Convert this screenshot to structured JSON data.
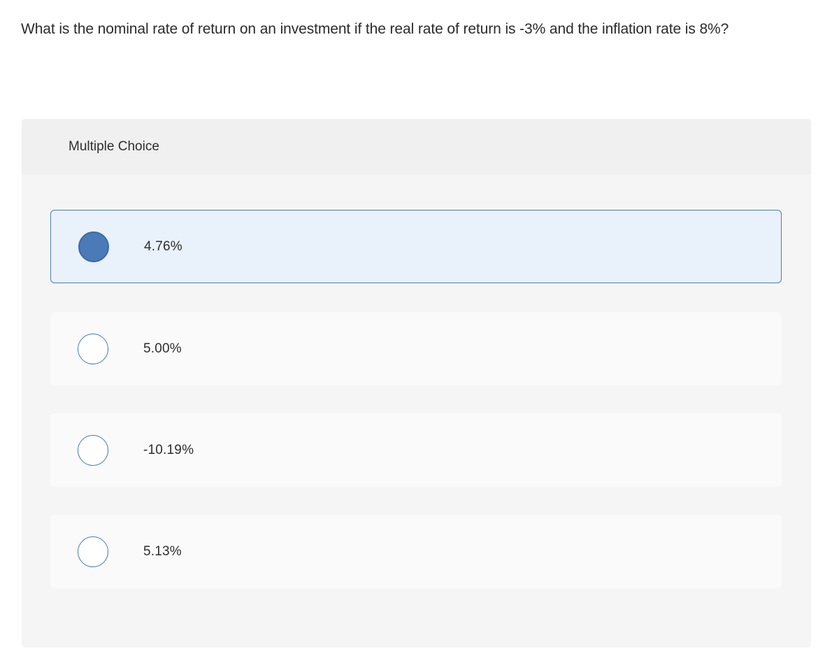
{
  "question": {
    "text": "What is the nominal rate of return on an investment if the real rate of return is -3% and the inflation rate is 8%?"
  },
  "quiz": {
    "type_label": "Multiple Choice",
    "options": [
      {
        "label": "4.76%",
        "selected": true
      },
      {
        "label": "5.00%",
        "selected": false
      },
      {
        "label": "-10.19%",
        "selected": false
      },
      {
        "label": "5.13%",
        "selected": false
      }
    ]
  },
  "colors": {
    "card_background": "#f5f5f6",
    "header_background": "#f0f0f1",
    "selected_row_background": "#e9f1fb",
    "selected_row_border": "#4d7cb5",
    "radio_selected_fill": "#4a7ab8",
    "radio_border": "#4878b0",
    "text": "#2b2b2b"
  }
}
